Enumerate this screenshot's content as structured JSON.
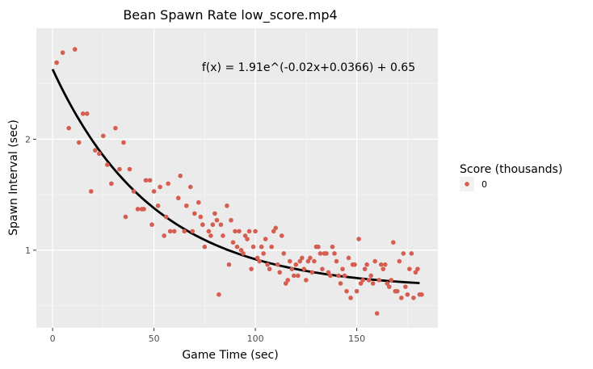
{
  "chart_data": {
    "type": "scatter",
    "title": "Bean Spawn Rate low_score.mp4",
    "xlabel": "Game Time (sec)",
    "ylabel": "Spawn Interval (sec)",
    "xlim": [
      -8,
      190
    ],
    "ylim": [
      0.3,
      3.0
    ],
    "x_ticks": [
      0,
      50,
      100,
      150
    ],
    "y_ticks": [
      1,
      2
    ],
    "grid": true,
    "annotation": "f(x) = 1.91e^(-0.02x+0.0366) + 0.65",
    "legend": {
      "title": "Score (thousands)",
      "position": "right",
      "entries": [
        {
          "label": "0",
          "color": "#d55e50"
        }
      ]
    },
    "point_color": "#d55e50",
    "fit_line_color": "#000000",
    "fit": {
      "a": 1.91,
      "k": -0.02,
      "c": 0.0366,
      "d": 0.65,
      "x_start": 0,
      "x_end": 181
    },
    "points": [
      [
        2,
        2.69
      ],
      [
        5,
        2.78
      ],
      [
        8,
        2.1
      ],
      [
        11,
        2.81
      ],
      [
        13,
        1.97
      ],
      [
        15,
        2.23
      ],
      [
        17,
        2.23
      ],
      [
        19,
        1.53
      ],
      [
        21,
        1.9
      ],
      [
        23,
        1.87
      ],
      [
        25,
        2.03
      ],
      [
        27,
        1.77
      ],
      [
        29,
        1.6
      ],
      [
        31,
        2.1
      ],
      [
        33,
        1.73
      ],
      [
        35,
        1.97
      ],
      [
        36,
        1.3
      ],
      [
        38,
        1.73
      ],
      [
        40,
        1.53
      ],
      [
        42,
        1.37
      ],
      [
        44,
        1.37
      ],
      [
        45,
        1.37
      ],
      [
        46,
        1.63
      ],
      [
        48,
        1.63
      ],
      [
        49,
        1.23
      ],
      [
        50,
        1.53
      ],
      [
        52,
        1.4
      ],
      [
        53,
        1.57
      ],
      [
        55,
        1.13
      ],
      [
        56,
        1.3
      ],
      [
        57,
        1.6
      ],
      [
        58,
        1.17
      ],
      [
        60,
        1.17
      ],
      [
        62,
        1.47
      ],
      [
        63,
        1.67
      ],
      [
        65,
        1.17
      ],
      [
        66,
        1.4
      ],
      [
        68,
        1.57
      ],
      [
        69,
        1.17
      ],
      [
        70,
        1.33
      ],
      [
        72,
        1.43
      ],
      [
        73,
        1.3
      ],
      [
        74,
        1.23
      ],
      [
        75,
        1.03
      ],
      [
        77,
        1.17
      ],
      [
        78,
        1.13
      ],
      [
        79,
        1.23
      ],
      [
        80,
        1.33
      ],
      [
        81,
        1.27
      ],
      [
        82,
        0.6
      ],
      [
        83,
        1.23
      ],
      [
        84,
        1.13
      ],
      [
        86,
        1.4
      ],
      [
        87,
        0.87
      ],
      [
        88,
        1.27
      ],
      [
        89,
        1.07
      ],
      [
        90,
        1.17
      ],
      [
        91,
        1.03
      ],
      [
        92,
        1.17
      ],
      [
        93,
        1.0
      ],
      [
        94,
        0.97
      ],
      [
        95,
        1.13
      ],
      [
        96,
        1.1
      ],
      [
        97,
        1.17
      ],
      [
        98,
        0.83
      ],
      [
        99,
        1.03
      ],
      [
        100,
        1.17
      ],
      [
        101,
        0.93
      ],
      [
        102,
        0.9
      ],
      [
        103,
        1.03
      ],
      [
        104,
        0.97
      ],
      [
        105,
        1.1
      ],
      [
        106,
        0.87
      ],
      [
        107,
        0.83
      ],
      [
        108,
        1.03
      ],
      [
        109,
        1.17
      ],
      [
        110,
        1.2
      ],
      [
        111,
        0.87
      ],
      [
        112,
        0.8
      ],
      [
        113,
        1.13
      ],
      [
        114,
        0.97
      ],
      [
        115,
        0.7
      ],
      [
        116,
        0.73
      ],
      [
        117,
        0.9
      ],
      [
        118,
        0.83
      ],
      [
        119,
        0.77
      ],
      [
        120,
        0.87
      ],
      [
        121,
        0.77
      ],
      [
        122,
        0.9
      ],
      [
        123,
        0.93
      ],
      [
        124,
        0.83
      ],
      [
        125,
        0.73
      ],
      [
        126,
        0.9
      ],
      [
        127,
        0.93
      ],
      [
        128,
        0.8
      ],
      [
        129,
        0.9
      ],
      [
        130,
        1.03
      ],
      [
        131,
        1.03
      ],
      [
        132,
        0.97
      ],
      [
        133,
        0.83
      ],
      [
        134,
        0.97
      ],
      [
        135,
        0.97
      ],
      [
        136,
        0.8
      ],
      [
        137,
        0.77
      ],
      [
        138,
        1.03
      ],
      [
        139,
        0.97
      ],
      [
        140,
        0.9
      ],
      [
        141,
        0.77
      ],
      [
        142,
        0.7
      ],
      [
        143,
        0.83
      ],
      [
        144,
        0.77
      ],
      [
        145,
        0.63
      ],
      [
        146,
        0.93
      ],
      [
        147,
        0.57
      ],
      [
        148,
        0.87
      ],
      [
        149,
        0.87
      ],
      [
        150,
        0.63
      ],
      [
        151,
        1.1
      ],
      [
        152,
        0.7
      ],
      [
        153,
        0.73
      ],
      [
        154,
        0.83
      ],
      [
        155,
        0.87
      ],
      [
        156,
        0.73
      ],
      [
        157,
        0.77
      ],
      [
        158,
        0.7
      ],
      [
        159,
        0.9
      ],
      [
        160,
        0.43
      ],
      [
        161,
        0.73
      ],
      [
        162,
        0.87
      ],
      [
        163,
        0.83
      ],
      [
        164,
        0.87
      ],
      [
        165,
        0.7
      ],
      [
        166,
        0.67
      ],
      [
        167,
        0.73
      ],
      [
        168,
        1.07
      ],
      [
        169,
        0.63
      ],
      [
        170,
        0.63
      ],
      [
        171,
        0.9
      ],
      [
        172,
        0.57
      ],
      [
        173,
        0.97
      ],
      [
        174,
        0.67
      ],
      [
        175,
        0.6
      ],
      [
        176,
        0.83
      ],
      [
        177,
        0.97
      ],
      [
        178,
        0.57
      ],
      [
        179,
        0.8
      ],
      [
        180,
        0.83
      ],
      [
        181,
        0.6
      ],
      [
        182,
        0.6
      ]
    ]
  }
}
